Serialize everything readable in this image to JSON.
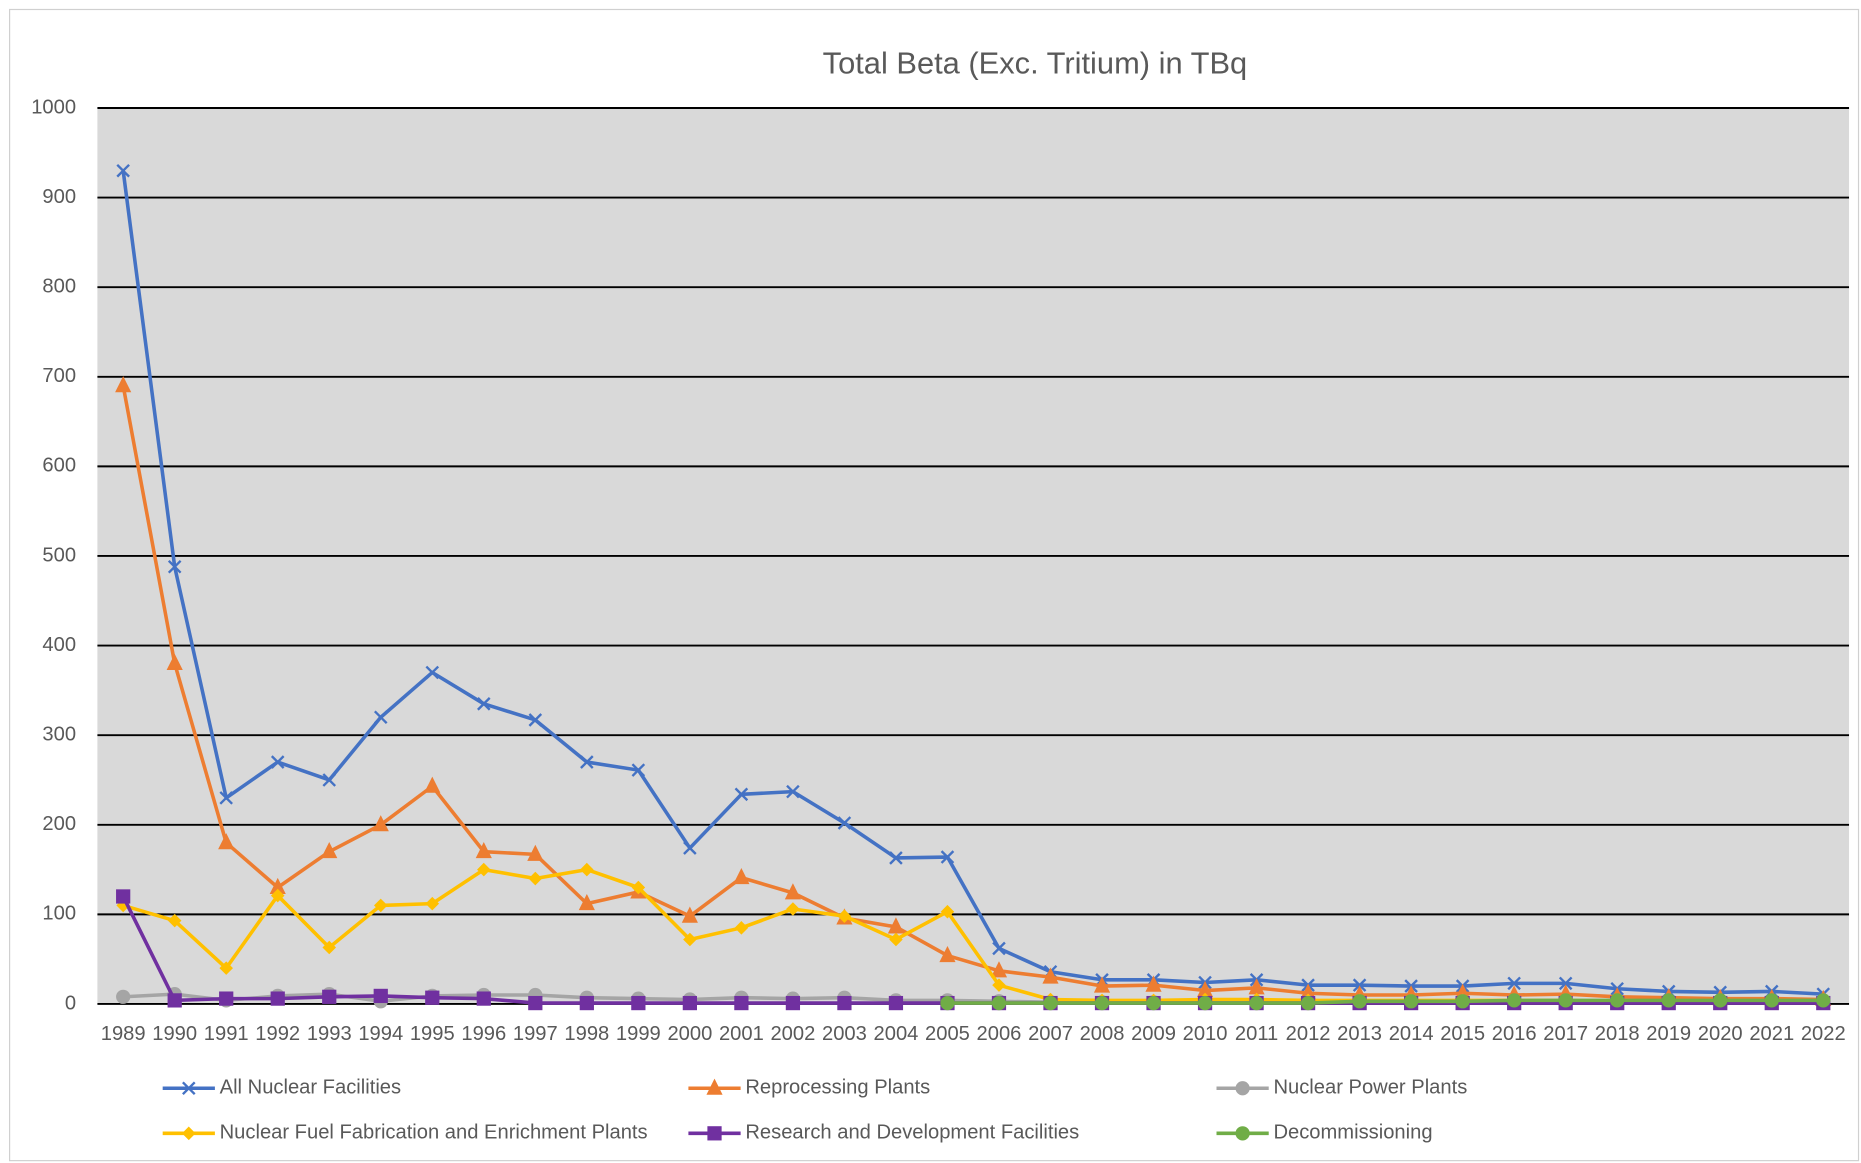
{
  "chart_data": {
    "type": "line",
    "title": "Total Beta (Exc. Tritium) in TBq",
    "categories": [
      "1989",
      "1990",
      "1991",
      "1992",
      "1993",
      "1994",
      "1995",
      "1996",
      "1997",
      "1998",
      "1999",
      "2000",
      "2001",
      "2002",
      "2003",
      "2004",
      "2005",
      "2006",
      "2007",
      "2008",
      "2009",
      "2010",
      "2011",
      "2012",
      "2013",
      "2014",
      "2015",
      "2016",
      "2017",
      "2018",
      "2019",
      "2020",
      "2021",
      "2022"
    ],
    "series": [
      {
        "name": "All Nuclear Facilities",
        "color": "#4472c4",
        "marker": "x",
        "values": [
          930,
          488,
          230,
          270,
          250,
          320,
          370,
          335,
          317,
          270,
          261,
          174,
          234,
          237,
          202,
          163,
          164,
          62,
          36,
          27,
          27,
          24,
          27,
          21,
          21,
          20,
          20,
          23,
          23,
          17,
          14,
          13,
          14,
          11
        ]
      },
      {
        "name": "Reprocessing Plants",
        "color": "#ed7d31",
        "marker": "triangle",
        "values": [
          690,
          380,
          180,
          130,
          170,
          200,
          243,
          170,
          167,
          112,
          125,
          98,
          141,
          124,
          96,
          86,
          54,
          37,
          30,
          20,
          21,
          15,
          18,
          12,
          10,
          10,
          12,
          10,
          11,
          8,
          7,
          6,
          6,
          5
        ]
      },
      {
        "name": "Nuclear Power Plants",
        "color": "#a5a5a5",
        "marker": "circle",
        "values": [
          8,
          11,
          4,
          9,
          11,
          3,
          9,
          10,
          10,
          7,
          6,
          5,
          7,
          6,
          7,
          4,
          4,
          3,
          2,
          2,
          2,
          2,
          2,
          2,
          2,
          2,
          2,
          2,
          2,
          2,
          2,
          2,
          2,
          2
        ]
      },
      {
        "name": "Nuclear Fuel Fabrication and Enrichment Plants",
        "color": "#ffc000",
        "marker": "diamond",
        "values": [
          110,
          93,
          40,
          121,
          63,
          110,
          112,
          150,
          140,
          150,
          130,
          72,
          85,
          106,
          98,
          72,
          103,
          21,
          5,
          4,
          4,
          5,
          5,
          4,
          4,
          4,
          4,
          4,
          4,
          3,
          3,
          3,
          3,
          3
        ]
      },
      {
        "name": "Research and Development Facilities",
        "color": "#7030a0",
        "marker": "square",
        "values": [
          120,
          4,
          6,
          6,
          8,
          9,
          7,
          6,
          1,
          1,
          1,
          1,
          1,
          1,
          1,
          1,
          1,
          1,
          1,
          1,
          1,
          1,
          1,
          1,
          1,
          1,
          1,
          1,
          1,
          1,
          1,
          1,
          1,
          1
        ]
      },
      {
        "name": "Decommissioning",
        "color": "#70ad47",
        "marker": "circle",
        "values": [
          null,
          null,
          null,
          null,
          null,
          null,
          null,
          null,
          null,
          null,
          null,
          null,
          null,
          null,
          null,
          null,
          1,
          1,
          1,
          1,
          1,
          1,
          1,
          1,
          3,
          3,
          3,
          4,
          4,
          4,
          4,
          4,
          4,
          4
        ]
      }
    ],
    "ylim": [
      0,
      1000
    ],
    "yticks": [
      0,
      100,
      200,
      300,
      400,
      500,
      600,
      700,
      800,
      900,
      1000
    ],
    "grid": true,
    "legend": "bottom"
  }
}
